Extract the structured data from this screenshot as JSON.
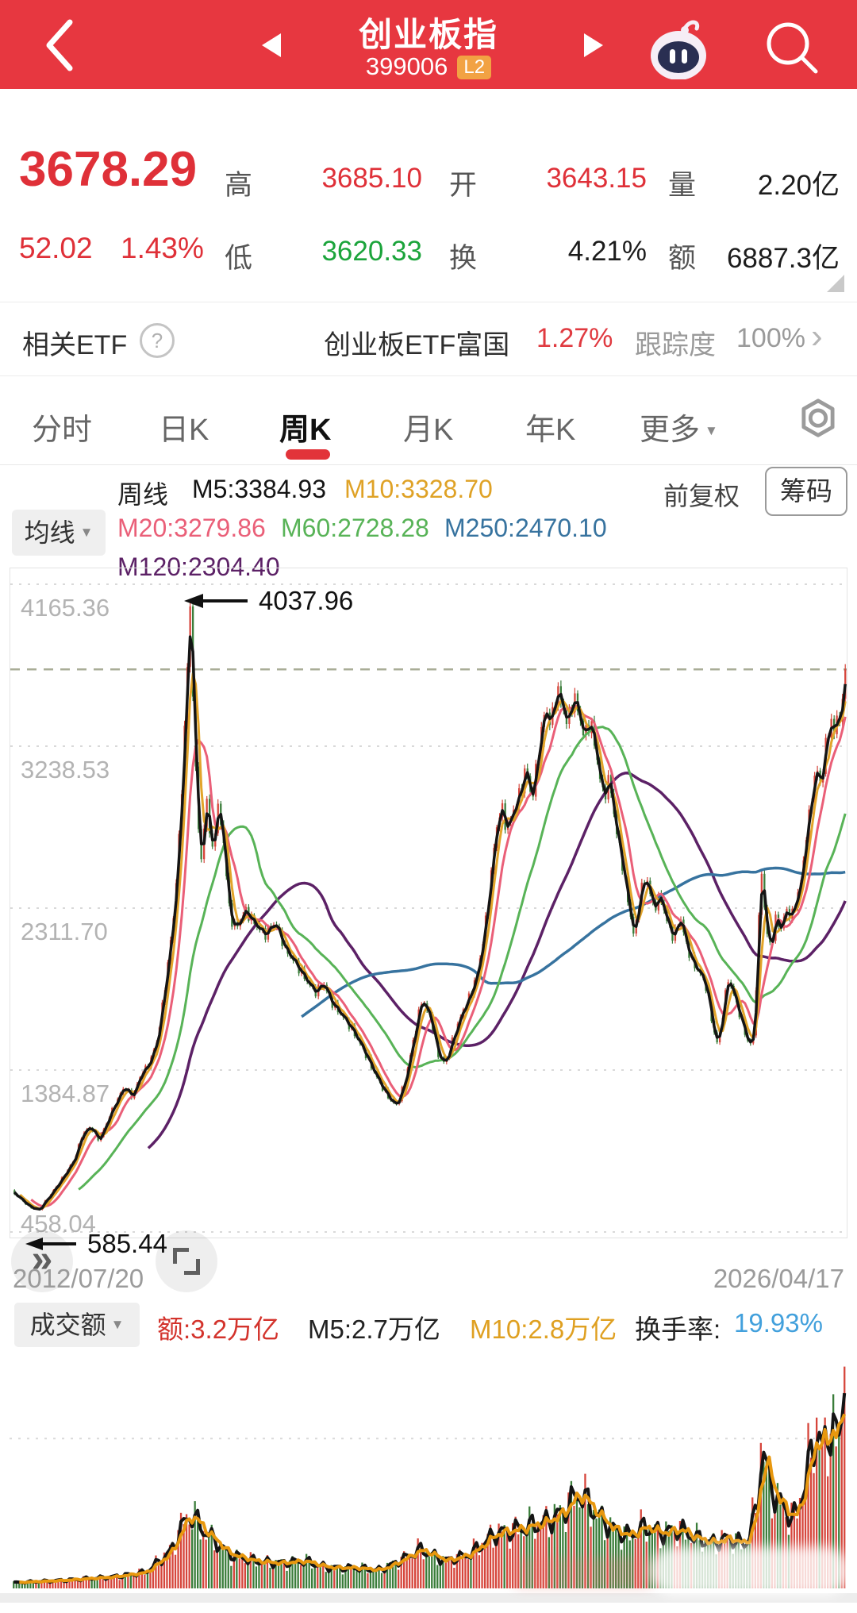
{
  "icons": {
    "caret_down": "▼",
    "chevron_right": "›",
    "help": "?",
    "fast_forward": "»"
  },
  "header": {
    "title": "创业板指",
    "code": "399006",
    "l2_badge": "L2"
  },
  "quote": {
    "price": "3678.29",
    "change": "52.02",
    "change_pct": "1.43%",
    "high_label": "高",
    "high": "3685.10",
    "open_label": "开",
    "open": "3643.15",
    "volume_label": "量",
    "volume": "2.20亿",
    "low_label": "低",
    "low": "3620.33",
    "turnover_label": "换",
    "turnover": "4.21%",
    "amount_label": "额",
    "amount": "6887.3亿"
  },
  "etf": {
    "label": "相关ETF",
    "name": "创业板ETF富国",
    "pct": "1.27%",
    "tracking_label": "跟踪度",
    "tracking_value": "100%"
  },
  "tabs": {
    "items": [
      "分时",
      "日K",
      "周K",
      "月K",
      "年K",
      "更多"
    ],
    "active_index": 2
  },
  "legend": {
    "ma_button": "均线",
    "period": "周线",
    "m5": "M5:3384.93",
    "m10": "M10:3328.70",
    "m20": "M20:3279.86",
    "m60": "M60:2728.28",
    "m250": "M250:2470.10",
    "m120": "M120:2304.40",
    "adjust": "前复权",
    "chips": "筹码"
  },
  "volume_header": {
    "button": "成交额",
    "amount": "额:3.2万亿",
    "m5": "M5:2.7万亿",
    "m10": "M10:2.8万亿",
    "turnover_label": "换手率:",
    "turnover_value": "19.93%"
  },
  "chart_data": {
    "type": "candlestick",
    "title": "创业板指 399006 周K 前复权",
    "x_start": "2012/07/20",
    "x_end": "2026/04/17",
    "y_ticks": [
      "4165.36",
      "3238.53",
      "2311.70",
      "1384.87",
      "458.04"
    ],
    "y_tick_values": [
      4165.36,
      3238.53,
      2311.7,
      1384.87,
      458.04
    ],
    "current_price": 3678.29,
    "annotations": {
      "peak": "4037.96",
      "peak_value": 4037.96,
      "peak_x_frac": 0.214,
      "low": "585.44",
      "low_value": 585.44,
      "low_x_frac": 0.032
    },
    "ma_lines": [
      {
        "name": "M5",
        "value": 3384.93,
        "color": "#141414",
        "window_weeks": 5
      },
      {
        "name": "M10",
        "value": 3328.7,
        "color": "#e2a42a",
        "window_weeks": 10
      },
      {
        "name": "M20",
        "value": 3279.86,
        "color": "#ea5f78",
        "window_weeks": 20
      },
      {
        "name": "M60",
        "value": 2728.28,
        "color": "#58b357",
        "window_weeks": 60
      },
      {
        "name": "M120",
        "value": 2304.4,
        "color": "#5c2166",
        "window_weeks": 120
      },
      {
        "name": "M250",
        "value": 2470.1,
        "color": "#37739f",
        "window_weeks": 250
      }
    ],
    "colors": {
      "up": "#d6453b",
      "down": "#3a7d3a",
      "grid": "#d9d9d9",
      "price_line": "#a9ad97",
      "axis_text": "#b3b3b3",
      "vol_m5": "#141414",
      "vol_m10": "#e8980f"
    },
    "price_points": [
      [
        0.0,
        690
      ],
      [
        0.01,
        650
      ],
      [
        0.022,
        600
      ],
      [
        0.032,
        585
      ],
      [
        0.045,
        660
      ],
      [
        0.06,
        760
      ],
      [
        0.075,
        870
      ],
      [
        0.085,
        1020
      ],
      [
        0.095,
        1060
      ],
      [
        0.105,
        980
      ],
      [
        0.12,
        1150
      ],
      [
        0.135,
        1290
      ],
      [
        0.145,
        1230
      ],
      [
        0.155,
        1360
      ],
      [
        0.165,
        1420
      ],
      [
        0.175,
        1560
      ],
      [
        0.185,
        1900
      ],
      [
        0.195,
        2300
      ],
      [
        0.202,
        2800
      ],
      [
        0.208,
        3400
      ],
      [
        0.214,
        4037.96
      ],
      [
        0.22,
        3150
      ],
      [
        0.227,
        2550
      ],
      [
        0.234,
        2950
      ],
      [
        0.24,
        2600
      ],
      [
        0.247,
        2900
      ],
      [
        0.254,
        2700
      ],
      [
        0.262,
        2250
      ],
      [
        0.27,
        2200
      ],
      [
        0.28,
        2300
      ],
      [
        0.292,
        2220
      ],
      [
        0.304,
        2160
      ],
      [
        0.316,
        2230
      ],
      [
        0.328,
        2080
      ],
      [
        0.34,
        2000
      ],
      [
        0.352,
        1910
      ],
      [
        0.364,
        1830
      ],
      [
        0.374,
        1880
      ],
      [
        0.384,
        1770
      ],
      [
        0.396,
        1700
      ],
      [
        0.408,
        1620
      ],
      [
        0.42,
        1520
      ],
      [
        0.432,
        1400
      ],
      [
        0.444,
        1290
      ],
      [
        0.455,
        1210
      ],
      [
        0.462,
        1184
      ],
      [
        0.472,
        1320
      ],
      [
        0.482,
        1560
      ],
      [
        0.492,
        1790
      ],
      [
        0.502,
        1690
      ],
      [
        0.512,
        1470
      ],
      [
        0.52,
        1420
      ],
      [
        0.53,
        1570
      ],
      [
        0.54,
        1710
      ],
      [
        0.55,
        1810
      ],
      [
        0.56,
        1960
      ],
      [
        0.57,
        2280
      ],
      [
        0.58,
        2720
      ],
      [
        0.587,
        2900
      ],
      [
        0.594,
        2760
      ],
      [
        0.602,
        2870
      ],
      [
        0.61,
        2970
      ],
      [
        0.617,
        3120
      ],
      [
        0.624,
        2920
      ],
      [
        0.632,
        3210
      ],
      [
        0.64,
        3460
      ],
      [
        0.647,
        3360
      ],
      [
        0.654,
        3570
      ],
      [
        0.66,
        3480
      ],
      [
        0.667,
        3360
      ],
      [
        0.674,
        3530
      ],
      [
        0.68,
        3430
      ],
      [
        0.687,
        3290
      ],
      [
        0.694,
        3390
      ],
      [
        0.702,
        3170
      ],
      [
        0.71,
        2940
      ],
      [
        0.717,
        3060
      ],
      [
        0.724,
        2790
      ],
      [
        0.732,
        2580
      ],
      [
        0.74,
        2330
      ],
      [
        0.747,
        2140
      ],
      [
        0.754,
        2410
      ],
      [
        0.762,
        2480
      ],
      [
        0.77,
        2310
      ],
      [
        0.778,
        2380
      ],
      [
        0.786,
        2240
      ],
      [
        0.794,
        2140
      ],
      [
        0.802,
        2260
      ],
      [
        0.81,
        2090
      ],
      [
        0.818,
        1990
      ],
      [
        0.826,
        1940
      ],
      [
        0.834,
        1850
      ],
      [
        0.841,
        1630
      ],
      [
        0.847,
        1528
      ],
      [
        0.853,
        1710
      ],
      [
        0.859,
        1910
      ],
      [
        0.865,
        1840
      ],
      [
        0.871,
        1740
      ],
      [
        0.877,
        1640
      ],
      [
        0.883,
        1550
      ],
      [
        0.889,
        1523
      ],
      [
        0.894,
        1950
      ],
      [
        0.899,
        2576
      ],
      [
        0.905,
        2180
      ],
      [
        0.911,
        2090
      ],
      [
        0.917,
        2260
      ],
      [
        0.923,
        2190
      ],
      [
        0.929,
        2310
      ],
      [
        0.935,
        2250
      ],
      [
        0.941,
        2360
      ],
      [
        0.947,
        2460
      ],
      [
        0.953,
        2720
      ],
      [
        0.959,
        2920
      ],
      [
        0.965,
        3120
      ],
      [
        0.971,
        3010
      ],
      [
        0.977,
        3260
      ],
      [
        0.983,
        3390
      ],
      [
        0.987,
        3290
      ],
      [
        0.991,
        3460
      ],
      [
        0.995,
        3360
      ],
      [
        1.0,
        3678.29
      ]
    ],
    "volume_points": [
      [
        0.0,
        0.025
      ],
      [
        0.06,
        0.035
      ],
      [
        0.12,
        0.05
      ],
      [
        0.16,
        0.07
      ],
      [
        0.19,
        0.16
      ],
      [
        0.205,
        0.28
      ],
      [
        0.215,
        0.33
      ],
      [
        0.225,
        0.27
      ],
      [
        0.24,
        0.22
      ],
      [
        0.26,
        0.15
      ],
      [
        0.29,
        0.12
      ],
      [
        0.32,
        0.11
      ],
      [
        0.35,
        0.12
      ],
      [
        0.38,
        0.09
      ],
      [
        0.41,
        0.09
      ],
      [
        0.44,
        0.08
      ],
      [
        0.46,
        0.11
      ],
      [
        0.49,
        0.17
      ],
      [
        0.52,
        0.12
      ],
      [
        0.55,
        0.15
      ],
      [
        0.58,
        0.24
      ],
      [
        0.61,
        0.26
      ],
      [
        0.64,
        0.29
      ],
      [
        0.66,
        0.33
      ],
      [
        0.68,
        0.42
      ],
      [
        0.7,
        0.33
      ],
      [
        0.72,
        0.26
      ],
      [
        0.74,
        0.23
      ],
      [
        0.76,
        0.27
      ],
      [
        0.78,
        0.24
      ],
      [
        0.8,
        0.26
      ],
      [
        0.82,
        0.22
      ],
      [
        0.84,
        0.2
      ],
      [
        0.86,
        0.22
      ],
      [
        0.88,
        0.19
      ],
      [
        0.893,
        0.34
      ],
      [
        0.9,
        0.62
      ],
      [
        0.91,
        0.45
      ],
      [
        0.92,
        0.38
      ],
      [
        0.93,
        0.33
      ],
      [
        0.94,
        0.31
      ],
      [
        0.95,
        0.45
      ],
      [
        0.96,
        0.6
      ],
      [
        0.966,
        0.72
      ],
      [
        0.972,
        0.58
      ],
      [
        0.978,
        0.66
      ],
      [
        0.984,
        0.76
      ],
      [
        0.99,
        0.62
      ],
      [
        0.995,
        0.7
      ],
      [
        1.0,
        0.97
      ]
    ],
    "volume": {
      "gridline_frac": 0.355
    }
  }
}
